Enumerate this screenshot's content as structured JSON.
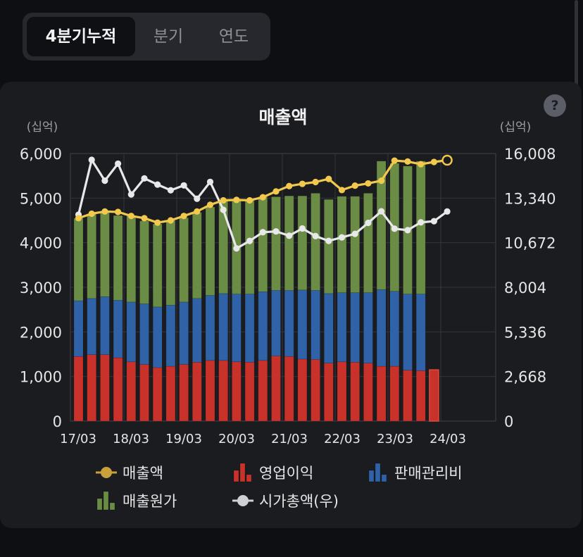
{
  "tabs": [
    {
      "label": "4분기누적",
      "active": true
    },
    {
      "label": "분기",
      "active": false
    },
    {
      "label": "연도",
      "active": false
    }
  ],
  "help_label": "?",
  "chart_data": {
    "type": "bar+line",
    "title": "매출액",
    "left_axis_unit": "(십억)",
    "right_axis_unit": "(십억)",
    "y_left_ticks": [
      "6,000",
      "5,000",
      "4,000",
      "3,000",
      "2,000",
      "1,000",
      "0"
    ],
    "y_right_ticks": [
      "16,008",
      "13,340",
      "10,672",
      "8,004",
      "5,336",
      "2,668",
      "0"
    ],
    "ylim_left": [
      0,
      6000
    ],
    "ylim_right": [
      0,
      16008
    ],
    "x_tick_labels": [
      "17/03",
      "18/03",
      "19/03",
      "20/03",
      "21/03",
      "22/03",
      "23/03",
      "24/03"
    ],
    "periods": [
      "17/03",
      "17/06",
      "17/09",
      "17/12",
      "18/03",
      "18/06",
      "18/09",
      "18/12",
      "19/03",
      "19/06",
      "19/09",
      "19/12",
      "20/03",
      "20/06",
      "20/09",
      "20/12",
      "21/03",
      "21/06",
      "21/09",
      "21/12",
      "22/03",
      "22/06",
      "22/09",
      "22/12",
      "23/03",
      "23/06",
      "23/09",
      "23/12",
      "24/03"
    ],
    "series": [
      {
        "name": "영업이익",
        "kind": "bar",
        "color": "#c8322a",
        "values": [
          1450,
          1490,
          1490,
          1420,
          1330,
          1270,
          1200,
          1230,
          1270,
          1320,
          1360,
          1360,
          1330,
          1320,
          1360,
          1460,
          1450,
          1390,
          1380,
          1300,
          1330,
          1320,
          1300,
          1230,
          1230,
          1140,
          1130,
          1150,
          null
        ]
      },
      {
        "name": "판매관리비",
        "kind": "bar",
        "color": "#2f62a7",
        "values": [
          1250,
          1260,
          1300,
          1290,
          1340,
          1360,
          1360,
          1370,
          1400,
          1430,
          1460,
          1500,
          1520,
          1530,
          1540,
          1470,
          1480,
          1550,
          1550,
          1560,
          1550,
          1560,
          1580,
          1720,
          1680,
          1710,
          1720,
          null,
          null
        ]
      },
      {
        "name": "매출원가",
        "kind": "bar",
        "color": "#6a8c45",
        "values": [
          1850,
          1900,
          1900,
          1900,
          1930,
          1860,
          1860,
          1900,
          1890,
          1930,
          1980,
          2080,
          2100,
          2120,
          2130,
          2100,
          2120,
          2110,
          2180,
          2110,
          2160,
          2160,
          2230,
          2880,
          2870,
          2870,
          2980,
          null,
          null
        ]
      },
      {
        "name": "매출액",
        "kind": "line",
        "color": "#f2c94c",
        "axis": "left",
        "values": [
          4550,
          4650,
          4700,
          4690,
          4600,
          4550,
          4450,
          4500,
          4600,
          4700,
          4850,
          4950,
          4960,
          4950,
          5020,
          5150,
          5270,
          5320,
          5360,
          5430,
          5180,
          5280,
          5330,
          5390,
          5840,
          5820,
          5760,
          5810,
          5850
        ]
      },
      {
        "name": "시가총액(우)",
        "kind": "line",
        "color": "#e8e8ea",
        "axis": "right",
        "values": [
          12350,
          15630,
          14380,
          15400,
          13560,
          14520,
          14150,
          13810,
          14100,
          13300,
          14310,
          12640,
          10330,
          10780,
          11300,
          11350,
          11090,
          11520,
          11070,
          10780,
          10990,
          11200,
          11860,
          12550,
          11510,
          11420,
          11890,
          11960,
          12540
        ]
      }
    ],
    "legend": [
      {
        "label": "매출액",
        "icon": "line-marker-gold"
      },
      {
        "label": "영업이익",
        "icon": "bar-icon-red"
      },
      {
        "label": "판매관리비",
        "icon": "bar-icon-blue"
      },
      {
        "label": "매출원가",
        "icon": "bar-icon-green"
      },
      {
        "label": "시가총액(우)",
        "icon": "line-marker-white"
      }
    ],
    "grid": true
  }
}
